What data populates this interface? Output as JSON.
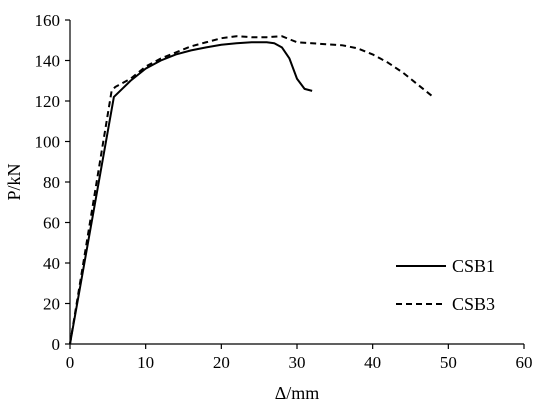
{
  "chart_data": {
    "type": "line",
    "xlabel": "Δ/mm",
    "ylabel": "P/kN",
    "xlim": [
      0,
      60
    ],
    "ylim": [
      0,
      160
    ],
    "xticks": [
      0,
      10,
      20,
      30,
      40,
      50,
      60
    ],
    "yticks": [
      0,
      20,
      40,
      60,
      80,
      100,
      120,
      140,
      160
    ],
    "grid": false,
    "legend_position": "bottom-right",
    "series": [
      {
        "name": "CSB1",
        "style": "solid",
        "color": "#000000",
        "x": [
          0,
          5.8,
          8,
          10,
          12,
          14,
          16,
          18,
          20,
          22,
          24,
          26,
          27,
          28,
          29,
          30,
          31,
          32
        ],
        "y": [
          0,
          122,
          130,
          136,
          140,
          143,
          145,
          146.5,
          147.8,
          148.5,
          149,
          149,
          148.5,
          146.5,
          141,
          131,
          126,
          125
        ]
      },
      {
        "name": "CSB3",
        "style": "dashed",
        "color": "#000000",
        "x": [
          0,
          5.5,
          6,
          8,
          10,
          12,
          14,
          16,
          18,
          20,
          22,
          24,
          26,
          28,
          29,
          30,
          32,
          34,
          36,
          38,
          40,
          42,
          44,
          46,
          48
        ],
        "y": [
          0,
          125,
          127,
          131,
          137,
          141,
          144,
          147,
          149,
          151,
          152,
          151.5,
          151.5,
          152,
          150.5,
          149,
          148.5,
          148,
          147.5,
          146,
          143,
          139,
          134,
          128,
          122
        ]
      }
    ]
  }
}
